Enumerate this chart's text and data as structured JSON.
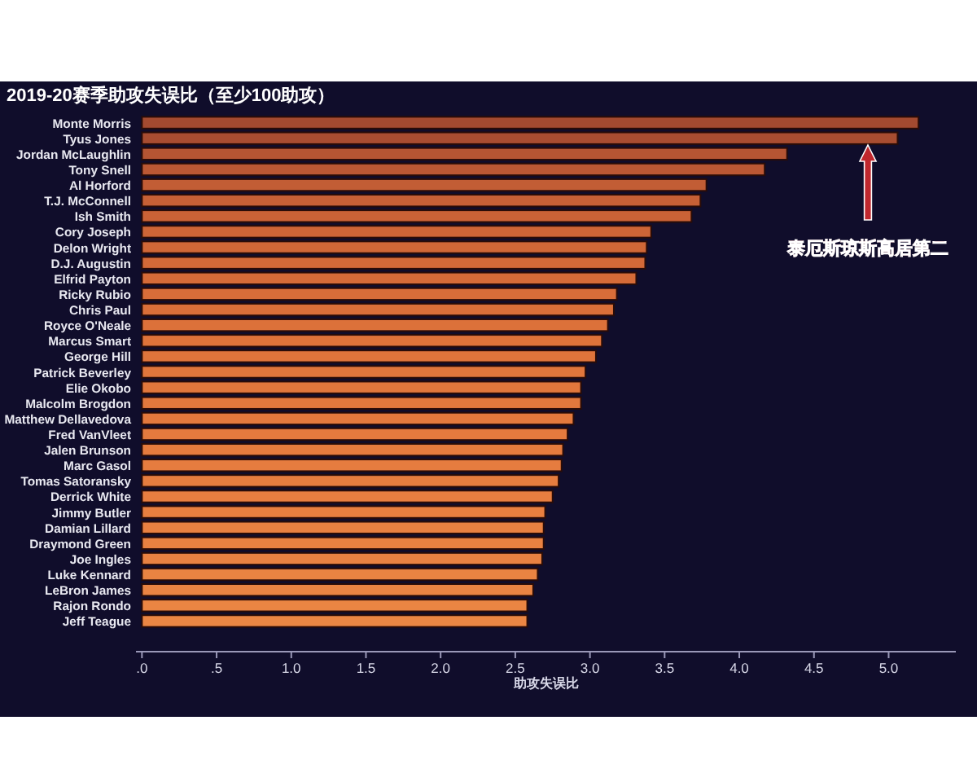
{
  "chart_data": {
    "type": "bar",
    "orientation": "horizontal",
    "title": "2019-20赛季助攻失误比（至少100助攻）",
    "xlabel": "助攻失误比",
    "categories": [
      "Monte Morris",
      "Tyus Jones",
      "Jordan McLaughlin",
      "Tony Snell",
      "Al Horford",
      "T.J. McConnell",
      "Ish Smith",
      "Cory Joseph",
      "Delon Wright",
      "D.J. Augustin",
      "Elfrid Payton",
      "Ricky Rubio",
      "Chris Paul",
      "Royce O'Neale",
      "Marcus Smart",
      "George Hill",
      "Patrick Beverley",
      "Elie Okobo",
      "Malcolm Brogdon",
      "Matthew Dellavedova",
      "Fred VanVleet",
      "Jalen Brunson",
      "Marc Gasol",
      "Tomas Satoransky",
      "Derrick White",
      "Jimmy Butler",
      "Damian Lillard",
      "Draymond Green",
      "Joe Ingles",
      "Luke Kennard",
      "LeBron James",
      "Rajon Rondo",
      "Jeff Teague"
    ],
    "values": [
      5.2,
      5.06,
      4.32,
      4.17,
      3.78,
      3.74,
      3.68,
      3.41,
      3.38,
      3.37,
      3.31,
      3.18,
      3.16,
      3.12,
      3.08,
      3.04,
      2.97,
      2.94,
      2.94,
      2.89,
      2.85,
      2.82,
      2.81,
      2.79,
      2.75,
      2.7,
      2.69,
      2.69,
      2.68,
      2.65,
      2.62,
      2.58,
      2.58
    ],
    "colors": [
      "#a34a30",
      "#a84d31",
      "#b55533",
      "#bb5834",
      "#c25d35",
      "#c66036",
      "#ca6236",
      "#cd6537",
      "#d06737",
      "#d36938",
      "#d56b38",
      "#d86d39",
      "#da6f39",
      "#dc713a",
      "#de733a",
      "#df743b",
      "#e0763c",
      "#e1773c",
      "#e2783d",
      "#e3793d",
      "#e47a3e",
      "#e57b3e",
      "#e67c3f",
      "#e67d3f",
      "#e77e40",
      "#e77f40",
      "#e88041",
      "#e88141",
      "#e98242",
      "#e98342",
      "#ea8443",
      "#ea8543",
      "#eb8644"
    ],
    "xlim": [
      -0.04,
      5.45
    ],
    "xticks": [
      {
        "value": 0,
        "label": ".0"
      },
      {
        "value": 0.5,
        "label": ".5"
      },
      {
        "value": 1,
        "label": "1.0"
      },
      1.5,
      {
        "value": 2,
        "label": "2.0"
      },
      2.5,
      {
        "value": 3,
        "label": "3.0"
      },
      3.5,
      {
        "value": 4,
        "label": "4.0"
      },
      4.5,
      {
        "value": 5,
        "label": "5.0"
      }
    ],
    "annotations": [
      "泰厄斯琼斯高居第二"
    ],
    "grid": false
  }
}
